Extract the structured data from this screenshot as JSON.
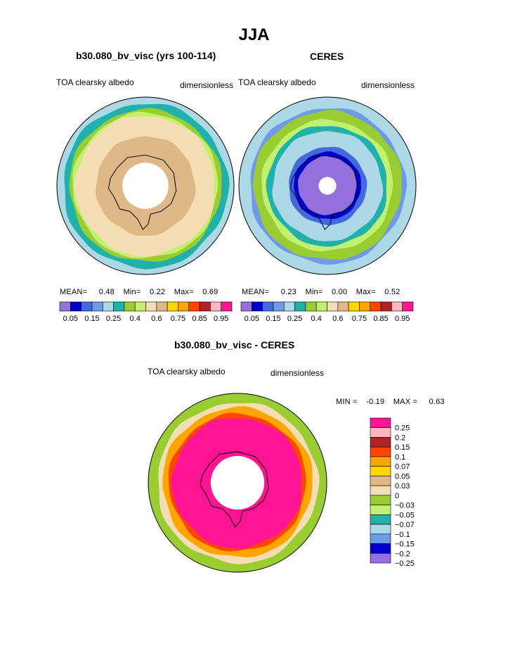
{
  "page": {
    "title": "JJA"
  },
  "chart_data": [
    {
      "type": "heatmap",
      "panel": "model",
      "title": "b30.080_bv_visc (yrs 100-114)",
      "left_label": "TOA clearsky albedo",
      "right_label": "dimensionless",
      "stats": {
        "mean_label": "MEAN=",
        "mean": "0.48",
        "min_label": "Min=",
        "min": "0.22",
        "max_label": "Max=",
        "max": "0.69"
      },
      "colorbar": {
        "colors": [
          "#9370db",
          "#0000cd",
          "#4169e1",
          "#6f9ae8",
          "#add8e6",
          "#20b2aa",
          "#9acd32",
          "#c2f070",
          "#f5deb3",
          "#deb887",
          "#ffd700",
          "#ffa500",
          "#ff4500",
          "#b22222",
          "#ffb6c1",
          "#ff1493"
        ],
        "labels": [
          "0.05",
          "0.15",
          "0.25",
          "0.4",
          "0.6",
          "0.75",
          "0.85",
          "0.95"
        ]
      },
      "rings": [
        {
          "radius_frac": 1.0,
          "color": "#add8e6"
        },
        {
          "radius_frac": 0.93,
          "color": "#20b2aa"
        },
        {
          "radius_frac": 0.86,
          "color": "#9acd32"
        },
        {
          "radius_frac": 0.82,
          "color": "#c2f070"
        },
        {
          "radius_frac": 0.79,
          "color": "#f5deb3"
        },
        {
          "radius_frac": 0.56,
          "color": "#deb887"
        },
        {
          "radius_frac": 0.26,
          "color": "#ffffff"
        }
      ]
    },
    {
      "type": "heatmap",
      "panel": "obs",
      "title": "CERES",
      "left_label": "TOA clearsky albedo",
      "right_label": "dimensionless",
      "stats": {
        "mean_label": "MEAN=",
        "mean": "0.23",
        "min_label": "Min=",
        "min": "0.00",
        "max_label": "Max=",
        "max": "0.52"
      },
      "colorbar": {
        "colors": [
          "#9370db",
          "#0000cd",
          "#4169e1",
          "#6f9ae8",
          "#add8e6",
          "#20b2aa",
          "#9acd32",
          "#c2f070",
          "#f5deb3",
          "#deb887",
          "#ffd700",
          "#ffa500",
          "#ff4500",
          "#b22222",
          "#ffb6c1",
          "#ff1493"
        ],
        "labels": [
          "0.05",
          "0.15",
          "0.25",
          "0.4",
          "0.6",
          "0.75",
          "0.85",
          "0.95"
        ]
      },
      "rings": [
        {
          "radius_frac": 1.0,
          "color": "#add8e6"
        },
        {
          "radius_frac": 0.88,
          "color": "#6f9ae8"
        },
        {
          "radius_frac": 0.84,
          "color": "#9acd32"
        },
        {
          "radius_frac": 0.74,
          "color": "#c2f070"
        },
        {
          "radius_frac": 0.68,
          "color": "#20b2aa"
        },
        {
          "radius_frac": 0.62,
          "color": "#add8e6"
        },
        {
          "radius_frac": 0.44,
          "color": "#4169e1"
        },
        {
          "radius_frac": 0.38,
          "color": "#0000cd"
        },
        {
          "radius_frac": 0.33,
          "color": "#9370db"
        },
        {
          "radius_frac": 0.1,
          "color": "#ffffff"
        }
      ]
    },
    {
      "type": "heatmap",
      "panel": "difference",
      "title": "b30.080_bv_visc - CERES",
      "left_label": "TOA clearsky albedo",
      "right_label": "dimensionless",
      "stats": {
        "min_label": "MIN =",
        "min": "-0.19",
        "max_label": "MAX =",
        "max": "0.63"
      },
      "colorbar": {
        "colors": [
          "#ff1493",
          "#ffb6c1",
          "#b22222",
          "#ff4500",
          "#ffa500",
          "#ffd700",
          "#deb887",
          "#f5deb3",
          "#9acd32",
          "#c2f070",
          "#20b2aa",
          "#add8e6",
          "#6f9ae8",
          "#0000cd",
          "#9370db"
        ],
        "labels": [
          "0.25",
          "0.2",
          "0.15",
          "0.1",
          "0.07",
          "0.05",
          "0.03",
          "0",
          "−0.03",
          "−0.05",
          "−0.07",
          "−0.1",
          "−0.15",
          "−0.2",
          "−0.25"
        ]
      },
      "rings": [
        {
          "radius_frac": 1.0,
          "color": "#9acd32"
        },
        {
          "radius_frac": 0.9,
          "color": "#f5deb3"
        },
        {
          "radius_frac": 0.84,
          "color": "#ffa500"
        },
        {
          "radius_frac": 0.77,
          "color": "#ff4500"
        },
        {
          "radius_frac": 0.73,
          "color": "#ff1493"
        },
        {
          "radius_frac": 0.3,
          "color": "#ffffff"
        }
      ]
    }
  ]
}
